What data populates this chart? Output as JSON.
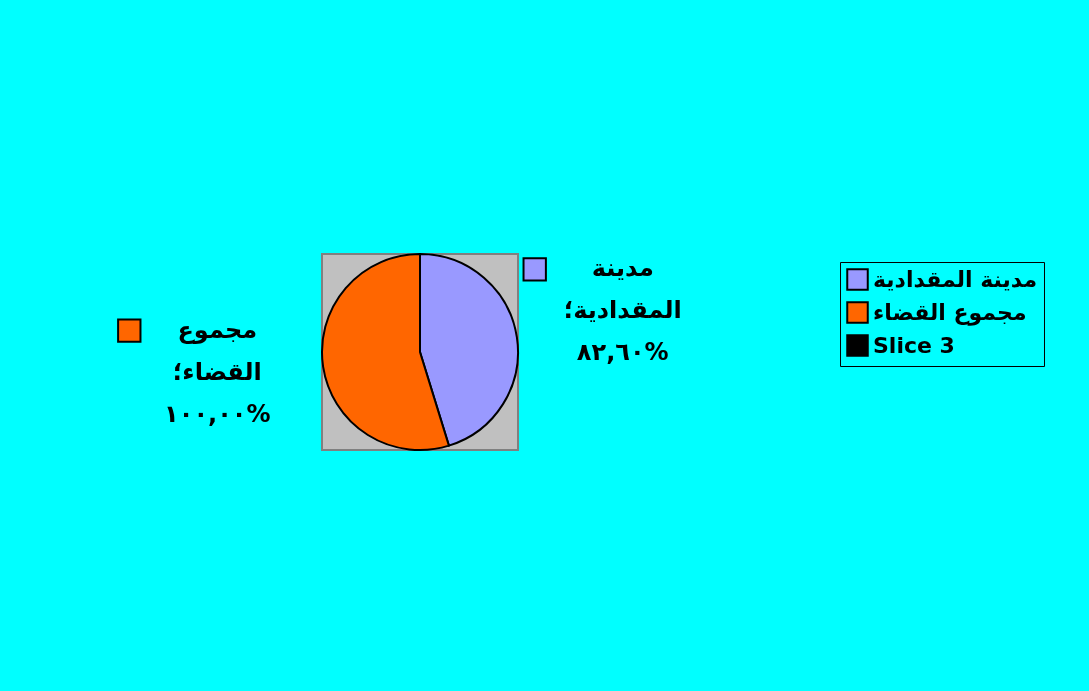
{
  "chart_data": {
    "type": "pie",
    "categories": [
      "مدينة المقدادية",
      "مجموع القضاء",
      "Slice 3"
    ],
    "values": [
      82.6,
      100.0,
      null
    ],
    "colors": [
      "#9999ff",
      "#ff6600",
      "#000000"
    ],
    "value_labels": [
      "مدينة المقدادية؛ ٨٢,٦٠%",
      "مجموع القضاء؛ ١٠٠,٠٠%",
      null
    ],
    "legend": "right"
  }
}
